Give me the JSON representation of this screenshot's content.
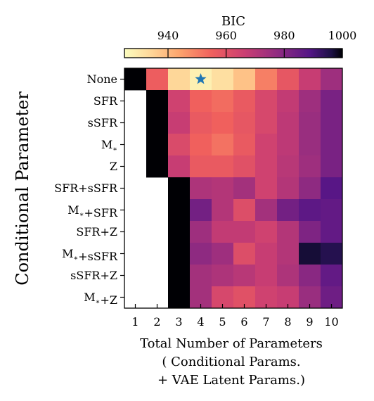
{
  "chart_data": {
    "type": "heatmap",
    "title": "",
    "xlabel": "Total Number of Parameters\n( Conditional Params.\n+ VAE Latent Params.)",
    "ylabel": "Conditional Parameter",
    "x": [
      "1",
      "2",
      "3",
      "4",
      "5",
      "6",
      "7",
      "8",
      "9",
      "10"
    ],
    "y": [
      "None",
      "SFR",
      "sSFR",
      "M∗",
      "Z",
      "SFR+sSFR",
      "M∗+SFR",
      "SFR+Z",
      "M∗+sSFR",
      "sSFR+Z",
      "M∗+Z"
    ],
    "colorbar": {
      "label": "BIC",
      "range": [
        925,
        1000
      ],
      "ticks": [
        "940",
        "960",
        "980",
        "1000"
      ],
      "colormap": "magma_r",
      "position": "top"
    },
    "values": [
      [
        1000,
        956,
        934,
        928,
        932,
        938,
        950,
        958,
        967,
        975
      ],
      [
        null,
        1000,
        965,
        955,
        953,
        957,
        963,
        968,
        975,
        982
      ],
      [
        null,
        1000,
        967,
        957,
        955,
        958,
        963,
        969,
        976,
        982
      ],
      [
        null,
        1000,
        962,
        955,
        952,
        957,
        965,
        969,
        976,
        982
      ],
      [
        null,
        1000,
        967,
        957,
        957,
        960,
        965,
        970,
        975,
        982
      ],
      [
        null,
        null,
        1000,
        972,
        971,
        974,
        965,
        971,
        978,
        988
      ],
      [
        null,
        null,
        1000,
        983,
        971,
        961,
        974,
        983,
        987,
        986
      ],
      [
        null,
        null,
        1000,
        975,
        968,
        968,
        965,
        971,
        981,
        986
      ],
      [
        null,
        null,
        1000,
        978,
        975,
        961,
        967,
        971,
        997,
        995
      ],
      [
        null,
        null,
        1000,
        974,
        972,
        970,
        967,
        972,
        979,
        986
      ],
      [
        null,
        null,
        1000,
        974,
        963,
        960,
        965,
        967,
        976,
        984
      ]
    ],
    "best_marker": {
      "row": "None",
      "col": "4",
      "symbol": "star",
      "color": "#1f77b4"
    }
  }
}
